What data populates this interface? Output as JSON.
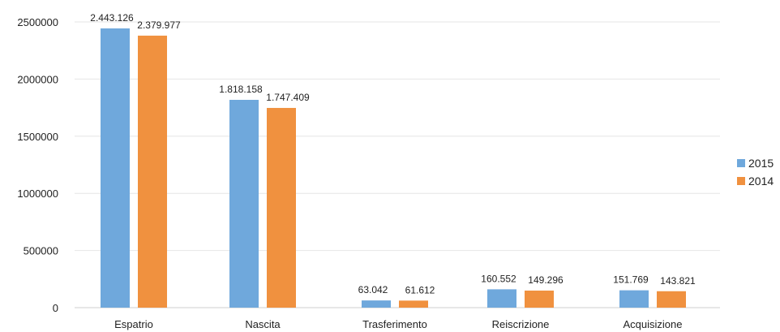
{
  "chart_data": {
    "type": "bar",
    "categories": [
      "Espatrio",
      "Nascita",
      "Trasferimento",
      "Reiscrizione",
      "Acquisizione"
    ],
    "series": [
      {
        "name": "2015",
        "color": "#6fa8dc",
        "values": [
          2443126,
          1818158,
          63042,
          160552,
          151769
        ],
        "labels": [
          "2.443.126",
          "1.818.158",
          "63.042",
          "160.552",
          "151.769"
        ]
      },
      {
        "name": "2014",
        "color": "#f0913f",
        "values": [
          2379977,
          1747409,
          61612,
          149296,
          143821
        ],
        "labels": [
          "2.379.977",
          "1.747.409",
          "61.612",
          "149.296",
          "143.821"
        ]
      }
    ],
    "yticks": [
      "0",
      "500000",
      "1000000",
      "1500000",
      "2000000",
      "2500000"
    ],
    "ylim": [
      0,
      2500000
    ],
    "grid": true,
    "legend_position": "right"
  }
}
